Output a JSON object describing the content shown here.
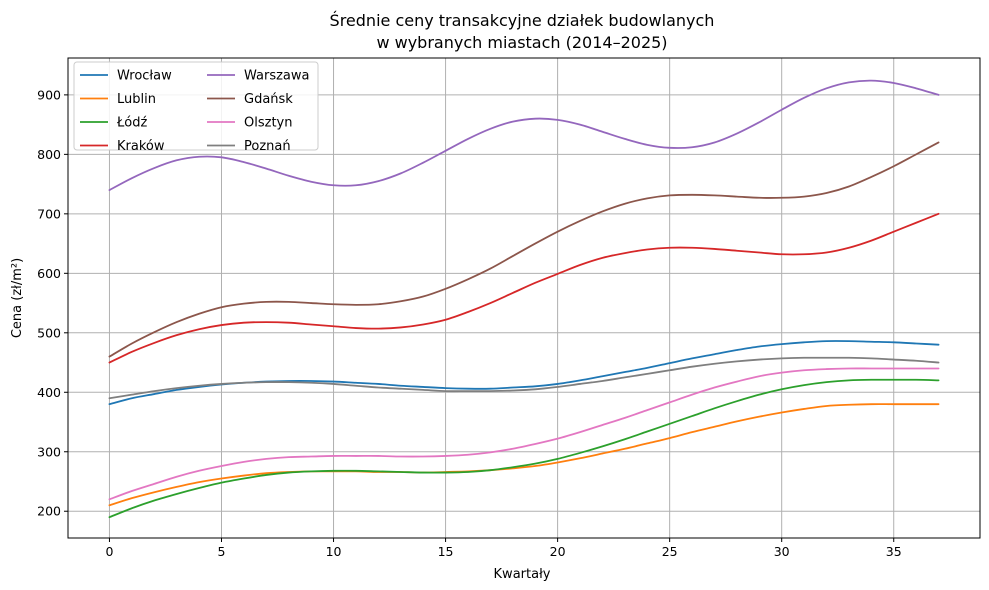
{
  "chart_data": {
    "type": "line",
    "title": [
      "Średnie ceny transakcyjne działek budowlanych",
      "w wybranych miastach (2014–2025)"
    ],
    "xlabel": "Kwartały",
    "ylabel": "Cena (zł/m²)",
    "xlim": [
      -1.85,
      38.85
    ],
    "ylim": [
      155,
      962
    ],
    "xticks": [
      0,
      5,
      10,
      15,
      20,
      25,
      30,
      35
    ],
    "yticks": [
      200,
      300,
      400,
      500,
      600,
      700,
      800,
      900
    ],
    "grid": true,
    "legend_position": "top-left",
    "legend_columns": 2,
    "x": [
      0,
      1,
      2,
      3,
      4,
      5,
      6,
      7,
      8,
      9,
      10,
      11,
      12,
      13,
      14,
      15,
      16,
      17,
      18,
      19,
      20,
      21,
      22,
      23,
      24,
      25,
      26,
      27,
      28,
      29,
      30,
      31,
      32,
      33,
      34,
      35,
      36,
      37
    ],
    "series": [
      {
        "name": "Wrocław",
        "color": "#1f77b4",
        "values": [
          380,
          390,
          397,
          404,
          409,
          413,
          416,
          418,
          419,
          419,
          418,
          416,
          414,
          411,
          409,
          407,
          406,
          406,
          408,
          410,
          414,
          420,
          427,
          434,
          441,
          449,
          457,
          464,
          471,
          477,
          481,
          484,
          486,
          486,
          485,
          484,
          482,
          480
        ]
      },
      {
        "name": "Lublin",
        "color": "#ff7f0e",
        "values": [
          210,
          222,
          232,
          241,
          249,
          255,
          260,
          264,
          266,
          267,
          267,
          267,
          266,
          266,
          265,
          266,
          267,
          269,
          272,
          276,
          282,
          289,
          297,
          305,
          314,
          323,
          333,
          342,
          351,
          359,
          366,
          372,
          377,
          379,
          380,
          380,
          380,
          380
        ]
      },
      {
        "name": "Łódź",
        "color": "#2ca02c",
        "values": [
          190,
          205,
          218,
          229,
          239,
          248,
          255,
          261,
          265,
          267,
          268,
          268,
          267,
          266,
          265,
          265,
          266,
          269,
          274,
          280,
          288,
          298,
          309,
          321,
          334,
          347,
          360,
          373,
          385,
          396,
          405,
          412,
          417,
          420,
          421,
          421,
          421,
          420
        ]
      },
      {
        "name": "Kraków",
        "color": "#d62728",
        "values": [
          450,
          468,
          483,
          496,
          506,
          513,
          517,
          518,
          517,
          514,
          511,
          508,
          507,
          509,
          514,
          522,
          535,
          550,
          567,
          584,
          599,
          614,
          626,
          634,
          640,
          643,
          643,
          641,
          638,
          635,
          632,
          632,
          635,
          643,
          655,
          670,
          685,
          700
        ]
      },
      {
        "name": "Warszawa",
        "color": "#9467bd",
        "values": [
          740,
          760,
          777,
          790,
          796,
          795,
          787,
          776,
          764,
          754,
          748,
          748,
          755,
          768,
          786,
          806,
          826,
          843,
          855,
          860,
          858,
          850,
          838,
          826,
          816,
          811,
          812,
          820,
          835,
          854,
          875,
          895,
          911,
          921,
          924,
          920,
          911,
          900
        ]
      },
      {
        "name": "Gdańsk",
        "color": "#8c564b",
        "values": [
          460,
          482,
          501,
          518,
          532,
          543,
          549,
          552,
          552,
          550,
          548,
          547,
          548,
          553,
          561,
          574,
          590,
          608,
          629,
          650,
          670,
          688,
          704,
          717,
          726,
          731,
          732,
          731,
          729,
          727,
          727,
          729,
          735,
          746,
          762,
          780,
          800,
          820
        ]
      },
      {
        "name": "Olsztyn",
        "color": "#e377c2",
        "values": [
          220,
          234,
          246,
          258,
          268,
          276,
          283,
          288,
          291,
          292,
          293,
          293,
          293,
          292,
          292,
          293,
          295,
          299,
          305,
          313,
          322,
          333,
          345,
          357,
          370,
          383,
          396,
          408,
          418,
          427,
          433,
          437,
          439,
          440,
          440,
          440,
          440,
          440
        ]
      },
      {
        "name": "Poznań",
        "color": "#7f7f7f",
        "values": [
          390,
          396,
          402,
          407,
          411,
          414,
          416,
          417,
          417,
          416,
          414,
          411,
          408,
          406,
          404,
          402,
          402,
          402,
          403,
          405,
          409,
          414,
          419,
          425,
          431,
          437,
          443,
          448,
          452,
          455,
          457,
          458,
          458,
          458,
          457,
          455,
          453,
          450
        ]
      }
    ]
  }
}
